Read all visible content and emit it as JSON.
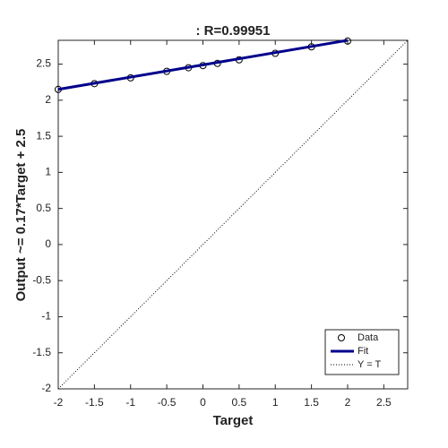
{
  "chart_data": {
    "type": "scatter",
    "title": ": R=0.99951",
    "xlabel": "Target",
    "ylabel": "Output ~= 0.17*Target + 2.5",
    "xlim": [
      -2,
      2.83
    ],
    "ylim": [
      -2,
      2.83
    ],
    "xticks": [
      -2,
      -1.5,
      -1,
      -0.5,
      0,
      0.5,
      1,
      1.5,
      2,
      2.5
    ],
    "yticks": [
      -2,
      -1.5,
      -1,
      -0.5,
      0,
      0.5,
      1,
      1.5,
      2,
      2.5
    ],
    "legend": "lower right",
    "series": [
      {
        "name": "Data",
        "style": "markers",
        "color": "#000000",
        "x": [
          -2,
          -1.5,
          -1,
          -0.5,
          -0.2,
          0,
          0.2,
          0.5,
          1,
          1.5,
          2
        ],
        "values": [
          2.15,
          2.23,
          2.31,
          2.4,
          2.45,
          2.48,
          2.51,
          2.56,
          2.65,
          2.74,
          2.82
        ]
      },
      {
        "name": "Fit",
        "style": "line",
        "color": "#00008b",
        "x": [
          -2,
          2
        ],
        "values": [
          2.15,
          2.83
        ]
      },
      {
        "name": "Y = T",
        "style": "dotted",
        "color": "#000000",
        "x": [
          -2,
          2.83
        ],
        "values": [
          -2,
          2.83
        ]
      }
    ]
  }
}
